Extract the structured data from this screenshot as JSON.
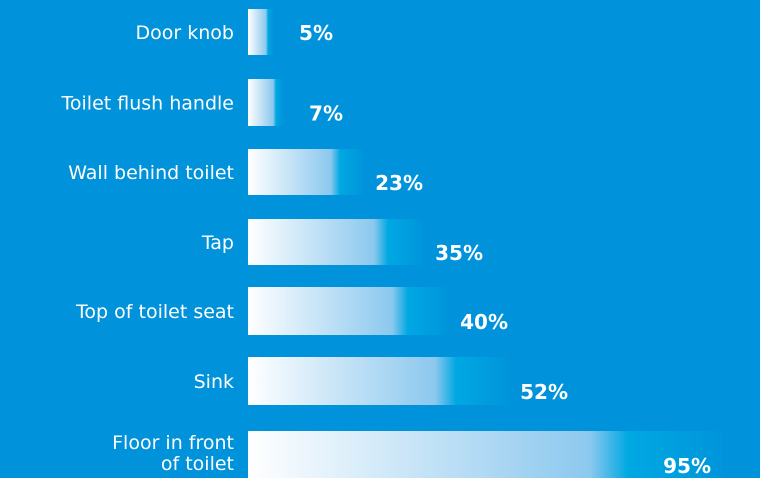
{
  "chart_data": {
    "type": "bar",
    "orientation": "horizontal",
    "categories": [
      "Door knob",
      "Toilet flush handle",
      "Wall behind toilet",
      "Tap",
      "Top of toilet seat",
      "Sink",
      "Floor in front of toilet"
    ],
    "values": [
      5,
      7,
      23,
      35,
      40,
      52,
      95
    ],
    "value_labels": [
      "5%",
      "7%",
      "23%",
      "35%",
      "40%",
      "52%",
      "95%"
    ],
    "xlim": [
      0,
      100
    ],
    "grid": false,
    "legend": "none",
    "colors": {
      "background": "#0092da",
      "bar_start": "#ffffff",
      "bar_end": "#00a3e0",
      "text": "#ffffff"
    }
  }
}
